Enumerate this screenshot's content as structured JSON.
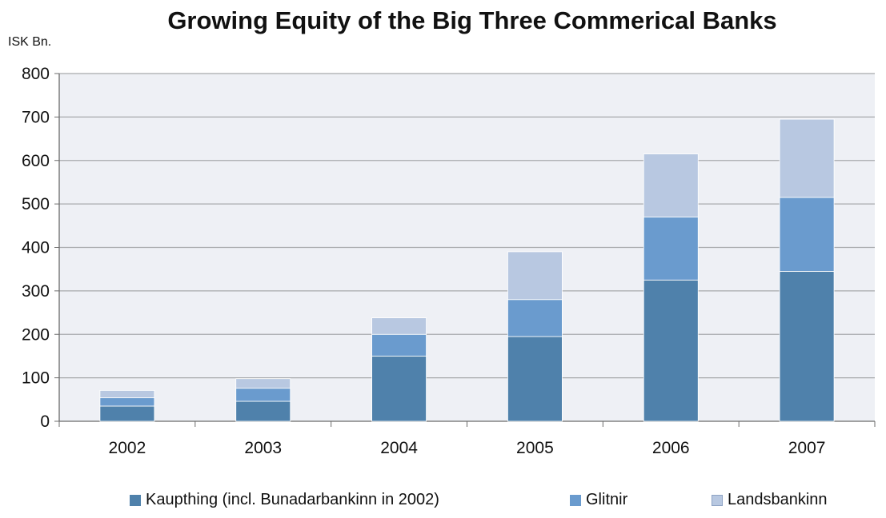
{
  "chart_data": {
    "type": "bar",
    "stacked": true,
    "title": "Growing Equity of the Big Three Commerical Banks",
    "ylabel": "ISK Bn.",
    "xlabel": "",
    "categories": [
      "2002",
      "2003",
      "2004",
      "2005",
      "2006",
      "2007"
    ],
    "ylim": [
      0,
      800
    ],
    "yticks": [
      "0",
      "100",
      "200",
      "300",
      "400",
      "500",
      "600",
      "700",
      "800"
    ],
    "grid": true,
    "legend_position": "bottom",
    "series": [
      {
        "name": "Kaupthing (incl. Bunadarbankinn in 2002)",
        "values": [
          35,
          46,
          150,
          195,
          325,
          345
        ],
        "color": "#4f81ab"
      },
      {
        "name": "Glitnir",
        "values": [
          19,
          30,
          50,
          85,
          145,
          170
        ],
        "color": "#6a9bce"
      },
      {
        "name": "Landsbankinn",
        "values": [
          17,
          22,
          38,
          110,
          145,
          180
        ],
        "color": "#b8c8e1"
      }
    ]
  },
  "colors": {
    "plot_background": "#eef0f5",
    "gridline": "#a7a9ac",
    "axis": "#6b6b6b"
  }
}
